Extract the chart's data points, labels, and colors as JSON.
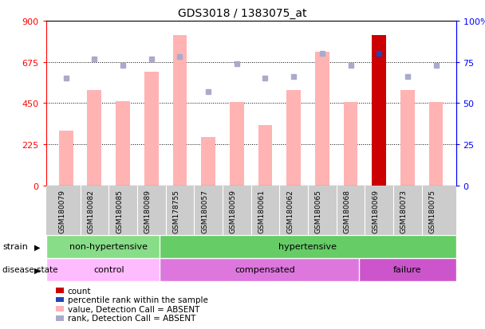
{
  "title": "GDS3018 / 1383075_at",
  "samples": [
    "GSM180079",
    "GSM180082",
    "GSM180085",
    "GSM180089",
    "GSM178755",
    "GSM180057",
    "GSM180059",
    "GSM180061",
    "GSM180062",
    "GSM180065",
    "GSM180068",
    "GSM180069",
    "GSM180073",
    "GSM180075"
  ],
  "bar_values": [
    300,
    520,
    460,
    620,
    820,
    265,
    455,
    330,
    520,
    730,
    455,
    820,
    520,
    455
  ],
  "bar_colors": [
    "#ffb3b3",
    "#ffb3b3",
    "#ffb3b3",
    "#ffb3b3",
    "#ffb3b3",
    "#ffb3b3",
    "#ffb3b3",
    "#ffb3b3",
    "#ffb3b3",
    "#ffb3b3",
    "#ffb3b3",
    "#cc0000",
    "#ffb3b3",
    "#ffb3b3"
  ],
  "rank_dots_pct": [
    65,
    77,
    73,
    77,
    78,
    57,
    74,
    65,
    66,
    80,
    73,
    80,
    66,
    73
  ],
  "rank_dot_colors": [
    "#aaaacc",
    "#aaaacc",
    "#aaaacc",
    "#aaaacc",
    "#aaaacc",
    "#aaaacc",
    "#aaaacc",
    "#aaaacc",
    "#aaaacc",
    "#aaaacc",
    "#aaaacc",
    "#2244bb",
    "#aaaacc",
    "#aaaacc"
  ],
  "ylim_left": [
    0,
    900
  ],
  "ylim_right": [
    0,
    100
  ],
  "left_ticks": [
    0,
    225,
    450,
    675,
    900
  ],
  "right_ticks": [
    0,
    25,
    50,
    75,
    100
  ],
  "strain_groups": [
    {
      "label": "non-hypertensive",
      "start": 0,
      "end": 4,
      "color": "#88dd88"
    },
    {
      "label": "hypertensive",
      "start": 4,
      "end": 14,
      "color": "#66cc66"
    }
  ],
  "disease_groups": [
    {
      "label": "control",
      "start": 0,
      "end": 4,
      "color": "#ffbbff"
    },
    {
      "label": "compensated",
      "start": 4,
      "end": 11,
      "color": "#dd77dd"
    },
    {
      "label": "failure",
      "start": 11,
      "end": 14,
      "color": "#cc55cc"
    }
  ],
  "legend_items": [
    {
      "color": "#cc0000",
      "label": "count"
    },
    {
      "color": "#2244bb",
      "label": "percentile rank within the sample"
    },
    {
      "color": "#ffb3b3",
      "label": "value, Detection Call = ABSENT"
    },
    {
      "color": "#aaaacc",
      "label": "rank, Detection Call = ABSENT"
    }
  ],
  "bar_width": 0.5,
  "label_bg": "#cccccc",
  "label_sep_color": "#ffffff"
}
